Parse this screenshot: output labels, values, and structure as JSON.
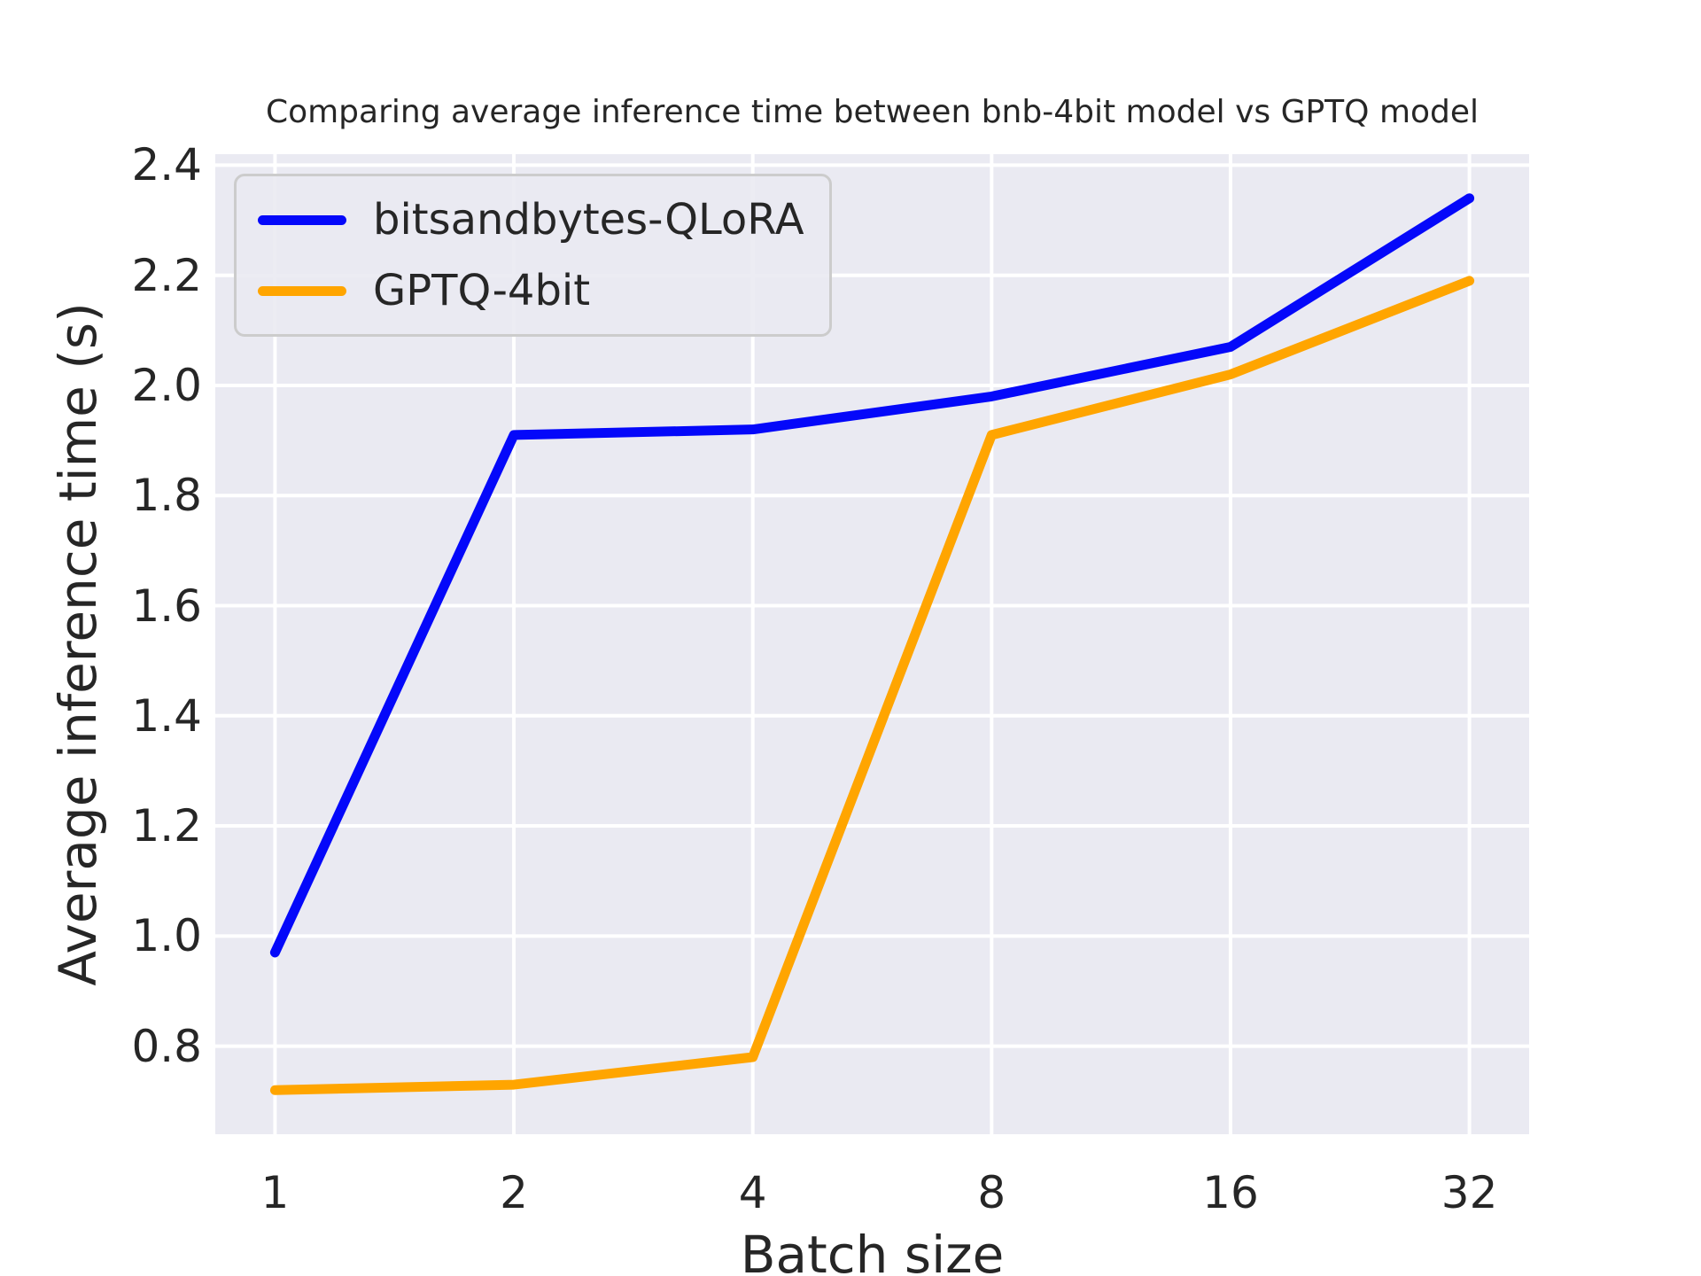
{
  "chart_data": {
    "type": "line",
    "title": "Comparing average inference time between bnb-4bit model vs GPTQ model",
    "xlabel": "Batch size",
    "ylabel": "Average inference time (s)",
    "categories": [
      "1",
      "2",
      "4",
      "8",
      "16",
      "32"
    ],
    "series": [
      {
        "name": "bitsandbytes-QLoRA",
        "color": "#0408fa",
        "values": [
          0.97,
          1.91,
          1.92,
          1.98,
          2.07,
          2.34
        ]
      },
      {
        "name": "GPTQ-4bit",
        "color": "#ffa500",
        "values": [
          0.72,
          0.73,
          0.78,
          1.91,
          2.02,
          2.19
        ]
      }
    ],
    "yticks": [
      2.4,
      2.2,
      2.0,
      1.8,
      1.6,
      1.4,
      1.2,
      1.0,
      0.8
    ],
    "ylim": [
      0.64,
      2.42
    ],
    "x_margin_fraction": 0.05,
    "grid": true,
    "grid_color": "#ffffff",
    "plot_background": "#eaeaf2",
    "text_color": "#262626",
    "legend_position": "upper-left",
    "legend_border_color": "#cccccc"
  }
}
